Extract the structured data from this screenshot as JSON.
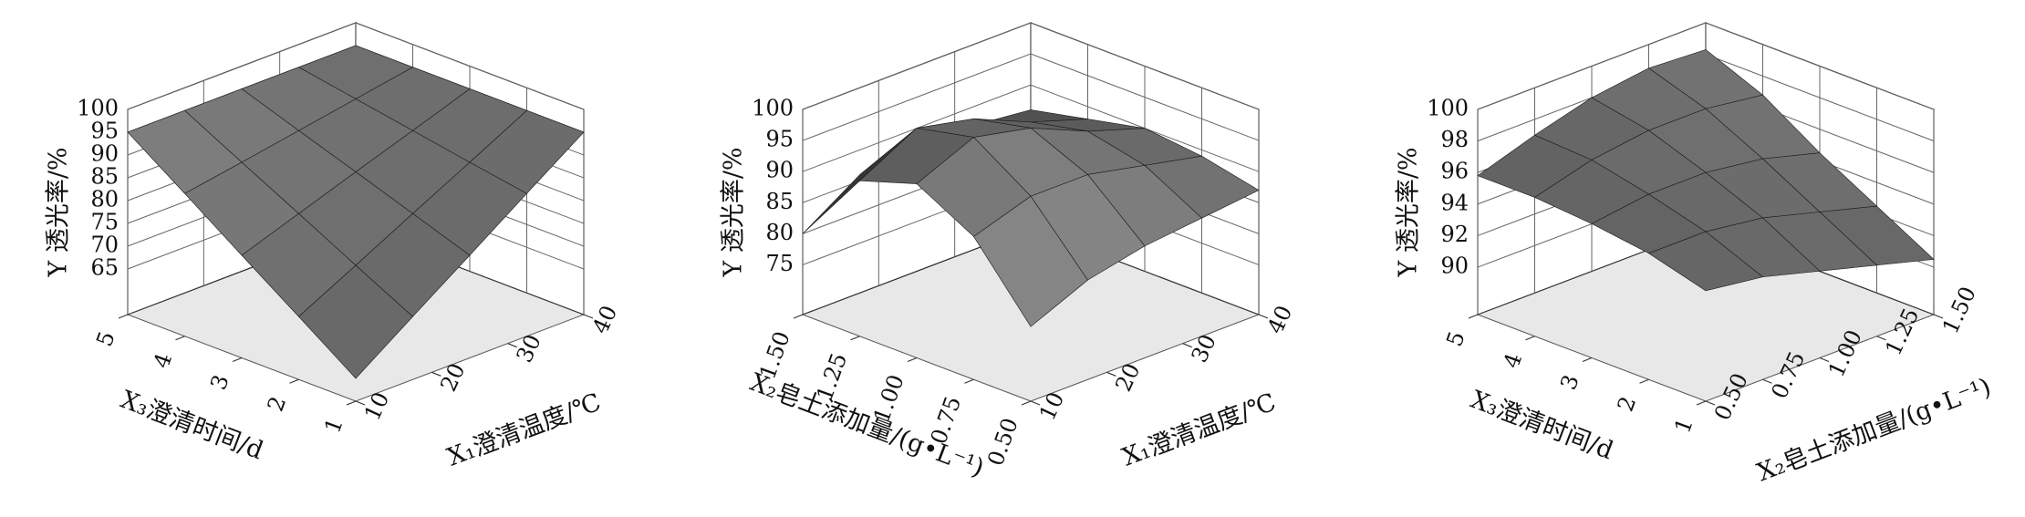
{
  "chart_data": [
    {
      "type": "surface3d",
      "zlabel": "Y 透光率/%",
      "xlabel": "X₃澄清时间/d",
      "ylabel": "X₁澄清温度/℃",
      "xlim": [
        1,
        5
      ],
      "xticks": [
        1,
        2,
        3,
        4,
        5
      ],
      "ylim": [
        10,
        40
      ],
      "yticks": [
        10,
        20,
        30,
        40
      ],
      "zlim": [
        55,
        100
      ],
      "zticks": [
        65,
        70,
        75,
        80,
        85,
        90,
        95,
        100
      ],
      "x": [
        1,
        2,
        3,
        4,
        5
      ],
      "y": [
        10,
        17.5,
        25,
        32.5,
        40
      ],
      "z": [
        [
          60,
          68.8,
          77.5,
          86.3,
          95
        ],
        [
          68.8,
          75.3,
          81.9,
          88.4,
          95
        ],
        [
          77.5,
          81.9,
          86.3,
          90.6,
          95
        ],
        [
          86.3,
          88.4,
          90.6,
          92.8,
          95
        ],
        [
          95,
          95,
          95,
          95,
          95
        ]
      ]
    },
    {
      "type": "surface3d",
      "zlabel": "Y 透光率/%",
      "xlabel": "X₂皂土添加量/(g•L⁻¹)",
      "ylabel": "X₁澄清温度/℃",
      "xlim": [
        0.5,
        1.5
      ],
      "xticks": [
        {
          "value": 0.5,
          "label": "0.50"
        },
        0.75,
        {
          "value": 1,
          "label": "1.00"
        },
        1.25,
        {
          "value": 1.5,
          "label": "1.50"
        }
      ],
      "ylim": [
        10,
        40
      ],
      "yticks": [
        10,
        20,
        30,
        40
      ],
      "zlim": [
        67,
        100
      ],
      "zticks": [
        75,
        80,
        85,
        90,
        95,
        100
      ],
      "x": [
        0.5,
        0.75,
        1,
        1.25,
        1.5
      ],
      "y": [
        10,
        17.5,
        25,
        32.5,
        40
      ],
      "z": [
        [
          79,
          83,
          85,
          86,
          87
        ],
        [
          90,
          93,
          93,
          91,
          89
        ],
        [
          95,
          99,
          97,
          93,
          90
        ],
        [
          92,
          97,
          95,
          91,
          88
        ],
        [
          80,
          86,
          88,
          87,
          86
        ]
      ]
    },
    {
      "type": "surface3d",
      "zlabel": "Y 透光率/%",
      "xlabel": "X₃澄清时间/d",
      "ylabel": "X₂皂土添加量/(g•L⁻¹)",
      "xlim": [
        1,
        5
      ],
      "xticks": [
        1,
        2,
        3,
        4,
        5
      ],
      "ylim": [
        0.5,
        1.5
      ],
      "yticks": [
        {
          "value": 0.5,
          "label": "0.50"
        },
        0.75,
        {
          "value": 1,
          "label": "1.00"
        },
        1.25,
        {
          "value": 1.5,
          "label": "1.50"
        }
      ],
      "zlim": [
        87,
        100
      ],
      "zticks": [
        90,
        92,
        94,
        96,
        98,
        100
      ],
      "x": [
        1,
        2,
        3,
        4,
        5
      ],
      "y": [
        0.5,
        0.75,
        1,
        1.25,
        1.5
      ],
      "z": [
        [
          94,
          93.5,
          92.5,
          91.5,
          90.5
        ],
        [
          95,
          95,
          94.5,
          93.5,
          92.5
        ],
        [
          95.5,
          96,
          96,
          95.5,
          94.5
        ],
        [
          95.8,
          96.8,
          97.3,
          97.3,
          96.8
        ],
        [
          95.8,
          97,
          98,
          98.5,
          98.3
        ]
      ]
    }
  ]
}
